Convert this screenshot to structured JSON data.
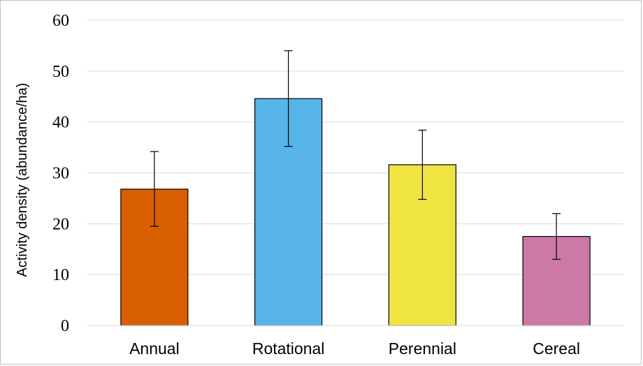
{
  "chart_data": {
    "type": "bar",
    "title": "",
    "xlabel": "",
    "ylabel": "Activity density (abundance/ha)",
    "ylim": [
      0,
      60
    ],
    "yticks": [
      0,
      10,
      20,
      30,
      40,
      50,
      60
    ],
    "grid": true,
    "categories": [
      "Annual",
      "Rotational",
      "Perennial",
      "Cereal"
    ],
    "values": [
      26.8,
      44.6,
      31.6,
      17.5
    ],
    "error_low": [
      19.5,
      35.2,
      24.8,
      13.0
    ],
    "error_high": [
      34.2,
      54.0,
      38.4,
      22.0
    ],
    "colors": [
      "#d95f02",
      "#56b4e9",
      "#f0e442",
      "#cc79a7"
    ]
  }
}
